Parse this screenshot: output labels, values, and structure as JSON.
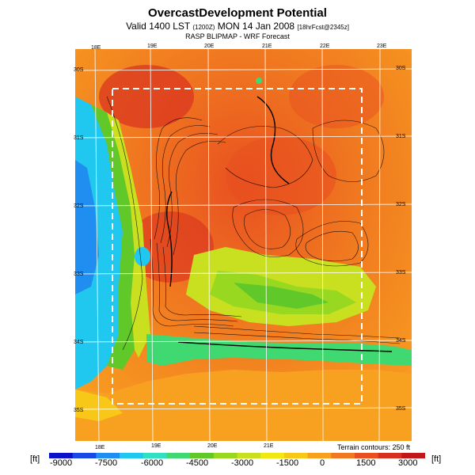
{
  "header": {
    "title": "OvercastDevelopment Potential",
    "valid_prefix": "Valid 1400 LST",
    "valid_small": "(1200Z)",
    "valid_date": "MON 14 Jan 2008",
    "forecast_tag": "[18hrFcst@2345z]",
    "subtitle": "RASP BLIPMAP - WRF Forecast"
  },
  "map": {
    "lon_labels": [
      "18E",
      "19E",
      "20E",
      "21E",
      "22E",
      "23E"
    ],
    "lat_labels": [
      "30S",
      "31S",
      "32S",
      "33S",
      "34S",
      "35S"
    ],
    "terrain_note": "Terrain contours: 250 ft"
  },
  "colorbar": {
    "unit": "[ft]",
    "ticks": [
      "-9000",
      "-7500",
      "-6000",
      "-4500",
      "-3000",
      "-1500",
      "0",
      "1500",
      "3000"
    ],
    "colors": [
      "#0a10c8",
      "#1a48e6",
      "#1f8ef0",
      "#20c8f0",
      "#30e0c0",
      "#40d870",
      "#60c828",
      "#98d820",
      "#c8e020",
      "#f0e810",
      "#f8c818",
      "#f8a020",
      "#f07820",
      "#e85020",
      "#d83020",
      "#c01818"
    ]
  }
}
